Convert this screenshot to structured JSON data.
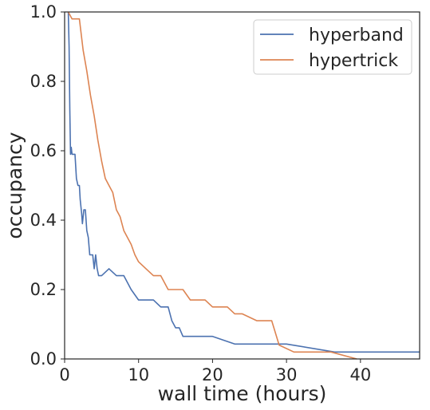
{
  "chart_data": {
    "type": "line",
    "xlabel": "wall time (hours)",
    "ylabel": "occupancy",
    "xlim": [
      0,
      48
    ],
    "ylim": [
      0,
      1.0
    ],
    "grid": false,
    "legend_position": "top-right",
    "x_ticks": [
      0,
      10,
      20,
      30,
      40
    ],
    "x_tick_labels": [
      "0",
      "10",
      "20",
      "30",
      "40"
    ],
    "y_ticks": [
      0,
      0.2,
      0.4,
      0.6,
      0.8,
      1.0
    ],
    "y_tick_labels": [
      "0.0",
      "0.2",
      "0.4",
      "0.6",
      "0.8",
      "1.0"
    ],
    "series": [
      {
        "name": "hyperband",
        "color": "#4c72b0",
        "x": [
          0.5,
          0.6,
          0.7,
          0.8,
          0.9,
          1.0,
          1.2,
          1.4,
          1.6,
          1.8,
          2.0,
          2.1,
          2.3,
          2.4,
          2.6,
          2.7,
          2.8,
          3.0,
          3.2,
          3.4,
          3.6,
          3.8,
          4.0,
          4.2,
          4.4,
          4.6,
          4.8,
          5.0,
          6.0,
          7.0,
          8.0,
          9.0,
          10.0,
          11.0,
          12.0,
          13.0,
          14.0,
          14.5,
          15.0,
          15.5,
          16.0,
          20.0,
          23.0,
          30.0,
          36.5,
          40.0,
          48.0
        ],
        "y": [
          1.0,
          0.9,
          0.72,
          0.59,
          0.61,
          0.59,
          0.59,
          0.59,
          0.52,
          0.5,
          0.5,
          0.46,
          0.42,
          0.39,
          0.43,
          0.43,
          0.43,
          0.37,
          0.35,
          0.3,
          0.3,
          0.3,
          0.26,
          0.3,
          0.26,
          0.24,
          0.24,
          0.24,
          0.26,
          0.24,
          0.24,
          0.2,
          0.17,
          0.17,
          0.17,
          0.15,
          0.15,
          0.11,
          0.09,
          0.09,
          0.065,
          0.065,
          0.043,
          0.043,
          0.02,
          0.02,
          0.02
        ]
      },
      {
        "name": "hypertrick",
        "color": "#dd8452",
        "x": [
          0.5,
          1.0,
          2.0,
          2.5,
          3.0,
          3.5,
          4.0,
          4.5,
          5.0,
          5.5,
          6.0,
          6.5,
          7.0,
          7.5,
          8.0,
          8.5,
          9.0,
          9.5,
          10.0,
          11.0,
          12.0,
          13.0,
          14.0,
          15.0,
          16.0,
          17.0,
          18.0,
          19.0,
          20.0,
          21.0,
          22.0,
          23.0,
          24.0,
          26.0,
          28.0,
          29.0,
          31.0,
          33.0,
          36.0,
          39.5
        ],
        "y": [
          1.0,
          0.98,
          0.98,
          0.89,
          0.83,
          0.76,
          0.7,
          0.63,
          0.57,
          0.52,
          0.5,
          0.48,
          0.43,
          0.41,
          0.37,
          0.35,
          0.33,
          0.3,
          0.28,
          0.26,
          0.24,
          0.24,
          0.2,
          0.2,
          0.2,
          0.17,
          0.17,
          0.17,
          0.15,
          0.15,
          0.15,
          0.13,
          0.13,
          0.11,
          0.11,
          0.04,
          0.02,
          0.02,
          0.02,
          0.0
        ]
      }
    ]
  }
}
